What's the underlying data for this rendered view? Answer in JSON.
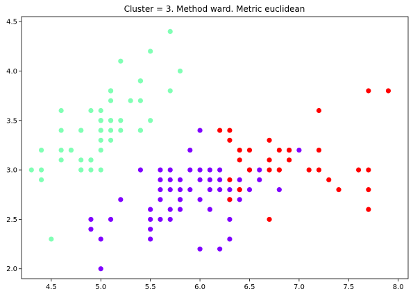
{
  "chart_data": {
    "type": "scatter",
    "title": "Cluster = 3. Method ward. Metric euclidean",
    "xlabel": "",
    "ylabel": "",
    "xlim": [
      4.2,
      8.1
    ],
    "ylim": [
      1.9,
      4.55
    ],
    "x_ticks": [
      "4.5",
      "5.0",
      "5.5",
      "6.0",
      "6.5",
      "7.0",
      "7.5",
      "8.0"
    ],
    "y_ticks": [
      "2.0",
      "2.5",
      "3.0",
      "3.5",
      "4.0",
      "4.5"
    ],
    "x_tick_values": [
      4.5,
      5.0,
      5.5,
      6.0,
      6.5,
      7.0,
      7.5,
      8.0
    ],
    "y_tick_values": [
      2.0,
      2.5,
      3.0,
      3.5,
      4.0,
      4.5
    ],
    "grid": false,
    "legend": "none",
    "series": [
      {
        "color": "#80ffb4",
        "points": [
          [
            5.1,
            3.5
          ],
          [
            4.9,
            3.0
          ],
          [
            4.7,
            3.2
          ],
          [
            4.6,
            3.1
          ],
          [
            5.0,
            3.6
          ],
          [
            5.4,
            3.9
          ],
          [
            4.6,
            3.4
          ],
          [
            5.0,
            3.4
          ],
          [
            4.4,
            2.9
          ],
          [
            4.9,
            3.1
          ],
          [
            5.4,
            3.7
          ],
          [
            4.8,
            3.4
          ],
          [
            4.8,
            3.0
          ],
          [
            4.3,
            3.0
          ],
          [
            5.8,
            4.0
          ],
          [
            5.7,
            4.4
          ],
          [
            5.4,
            3.9
          ],
          [
            5.1,
            3.5
          ],
          [
            5.7,
            3.8
          ],
          [
            5.1,
            3.8
          ],
          [
            5.4,
            3.4
          ],
          [
            5.1,
            3.7
          ],
          [
            4.6,
            3.6
          ],
          [
            5.1,
            3.3
          ],
          [
            4.8,
            3.4
          ],
          [
            5.0,
            3.0
          ],
          [
            5.0,
            3.4
          ],
          [
            5.2,
            3.5
          ],
          [
            5.2,
            3.4
          ],
          [
            4.7,
            3.2
          ],
          [
            4.8,
            3.1
          ],
          [
            5.4,
            3.4
          ],
          [
            5.2,
            4.1
          ],
          [
            5.5,
            4.2
          ],
          [
            4.9,
            3.1
          ],
          [
            5.0,
            3.2
          ],
          [
            5.5,
            3.5
          ],
          [
            4.9,
            3.6
          ],
          [
            4.4,
            3.0
          ],
          [
            5.1,
            3.4
          ],
          [
            5.0,
            3.5
          ],
          [
            4.5,
            2.3
          ],
          [
            4.4,
            3.2
          ],
          [
            5.0,
            3.5
          ],
          [
            5.1,
            3.8
          ],
          [
            4.8,
            3.0
          ],
          [
            5.1,
            3.8
          ],
          [
            4.6,
            3.2
          ],
          [
            5.3,
            3.7
          ],
          [
            5.0,
            3.3
          ]
        ]
      },
      {
        "color": "#8000ff",
        "points": [
          [
            5.0,
            2.0
          ],
          [
            5.0,
            2.3
          ],
          [
            6.0,
            2.2
          ],
          [
            6.2,
            2.2
          ],
          [
            4.9,
            2.5
          ],
          [
            5.5,
            2.3
          ],
          [
            6.3,
            2.3
          ],
          [
            4.9,
            2.4
          ],
          [
            5.5,
            2.4
          ],
          [
            5.1,
            2.5
          ],
          [
            5.5,
            2.5
          ],
          [
            5.6,
            2.5
          ],
          [
            5.7,
            2.5
          ],
          [
            6.3,
            2.5
          ],
          [
            5.5,
            2.6
          ],
          [
            5.8,
            2.6
          ],
          [
            6.1,
            2.6
          ],
          [
            5.2,
            2.7
          ],
          [
            5.6,
            2.7
          ],
          [
            5.8,
            2.7
          ],
          [
            6.0,
            2.7
          ],
          [
            6.3,
            2.7
          ],
          [
            5.7,
            2.8
          ],
          [
            5.6,
            2.8
          ],
          [
            6.1,
            2.8
          ],
          [
            6.2,
            2.8
          ],
          [
            6.5,
            2.8
          ],
          [
            6.8,
            2.8
          ],
          [
            5.8,
            2.8
          ],
          [
            5.6,
            2.9
          ],
          [
            5.7,
            2.9
          ],
          [
            6.1,
            2.9
          ],
          [
            6.4,
            2.9
          ],
          [
            6.0,
            2.9
          ],
          [
            6.2,
            2.9
          ],
          [
            6.6,
            2.9
          ],
          [
            5.4,
            3.0
          ],
          [
            5.6,
            3.0
          ],
          [
            5.7,
            3.0
          ],
          [
            5.9,
            3.0
          ],
          [
            6.0,
            3.0
          ],
          [
            6.1,
            3.0
          ],
          [
            6.5,
            3.0
          ],
          [
            6.6,
            3.0
          ],
          [
            5.9,
            3.2
          ],
          [
            7.0,
            3.2
          ],
          [
            6.0,
            3.4
          ],
          [
            5.8,
            2.7
          ],
          [
            6.3,
            2.8
          ],
          [
            6.4,
            2.7
          ],
          [
            5.7,
            2.6
          ],
          [
            5.9,
            2.8
          ],
          [
            6.9,
            3.2
          ],
          [
            5.8,
            2.9
          ],
          [
            6.2,
            3.0
          ]
        ]
      },
      {
        "color": "#ff0000",
        "points": [
          [
            7.7,
            3.8
          ],
          [
            7.9,
            3.8
          ],
          [
            7.2,
            3.6
          ],
          [
            6.2,
            3.4
          ],
          [
            6.3,
            3.4
          ],
          [
            6.3,
            3.3
          ],
          [
            6.7,
            3.3
          ],
          [
            6.4,
            3.2
          ],
          [
            6.5,
            3.2
          ],
          [
            6.9,
            3.2
          ],
          [
            7.2,
            3.2
          ],
          [
            6.8,
            3.2
          ],
          [
            6.4,
            3.1
          ],
          [
            6.7,
            3.1
          ],
          [
            6.9,
            3.1
          ],
          [
            6.5,
            3.0
          ],
          [
            6.7,
            3.0
          ],
          [
            6.8,
            3.0
          ],
          [
            7.1,
            3.0
          ],
          [
            7.2,
            3.0
          ],
          [
            7.6,
            3.0
          ],
          [
            7.7,
            3.0
          ],
          [
            6.3,
            2.9
          ],
          [
            7.3,
            2.9
          ],
          [
            6.4,
            2.8
          ],
          [
            7.4,
            2.8
          ],
          [
            7.7,
            2.8
          ],
          [
            6.3,
            2.7
          ],
          [
            6.4,
            2.8
          ],
          [
            7.7,
            2.6
          ],
          [
            6.7,
            2.5
          ],
          [
            6.8,
            3.0
          ]
        ]
      }
    ]
  }
}
